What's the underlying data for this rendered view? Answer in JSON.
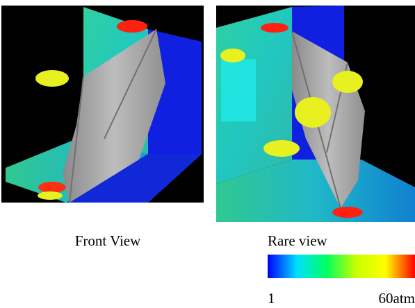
{
  "panels": [
    {
      "caption": "Front View"
    },
    {
      "caption": "Rare view"
    }
  ],
  "colorbar": {
    "lim": [
      1,
      60
    ],
    "ticks": [
      1,
      {
        "value": 60,
        "label": "60atm"
      }
    ],
    "colors": [
      "#0000ff",
      "#00e0ff",
      "#00ff60",
      "#c8ff00",
      "#ffff00",
      "#ff0000"
    ]
  }
}
